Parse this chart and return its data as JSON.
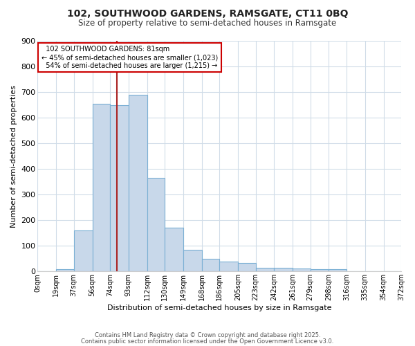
{
  "title1": "102, SOUTHWOOD GARDENS, RAMSGATE, CT11 0BQ",
  "title2": "Size of property relative to semi-detached houses in Ramsgate",
  "xlabel": "Distribution of semi-detached houses by size in Ramsgate",
  "ylabel": "Number of semi-detached properties",
  "bin_labels": [
    "0sqm",
    "19sqm",
    "37sqm",
    "56sqm",
    "74sqm",
    "93sqm",
    "112sqm",
    "130sqm",
    "149sqm",
    "168sqm",
    "186sqm",
    "205sqm",
    "223sqm",
    "242sqm",
    "261sqm",
    "279sqm",
    "298sqm",
    "316sqm",
    "335sqm",
    "354sqm",
    "372sqm"
  ],
  "bar_heights": [
    0,
    8,
    160,
    655,
    650,
    690,
    365,
    170,
    85,
    50,
    38,
    32,
    15,
    13,
    12,
    10,
    8,
    0,
    0,
    0,
    0
  ],
  "bar_color": "#c8d8ea",
  "bar_edge_color": "#7aafd4",
  "property_size": 81,
  "property_label": "102 SOUTHWOOD GARDENS: 81sqm",
  "pct_smaller": "45% of semi-detached houses are smaller (1,023)",
  "pct_larger": "54% of semi-detached houses are larger (1,215)",
  "vline_color": "#aa2222",
  "annotation_box_color": "#ffffff",
  "annotation_box_edge": "#cc0000",
  "bg_color": "#ffffff",
  "plot_bg_color": "#ffffff",
  "grid_color": "#d0dce8",
  "footer1": "Contains HM Land Registry data © Crown copyright and database right 2025.",
  "footer2": "Contains public sector information licensed under the Open Government Licence v3.0.",
  "ylim": [
    0,
    900
  ],
  "yticks": [
    0,
    100,
    200,
    300,
    400,
    500,
    600,
    700,
    800,
    900
  ]
}
